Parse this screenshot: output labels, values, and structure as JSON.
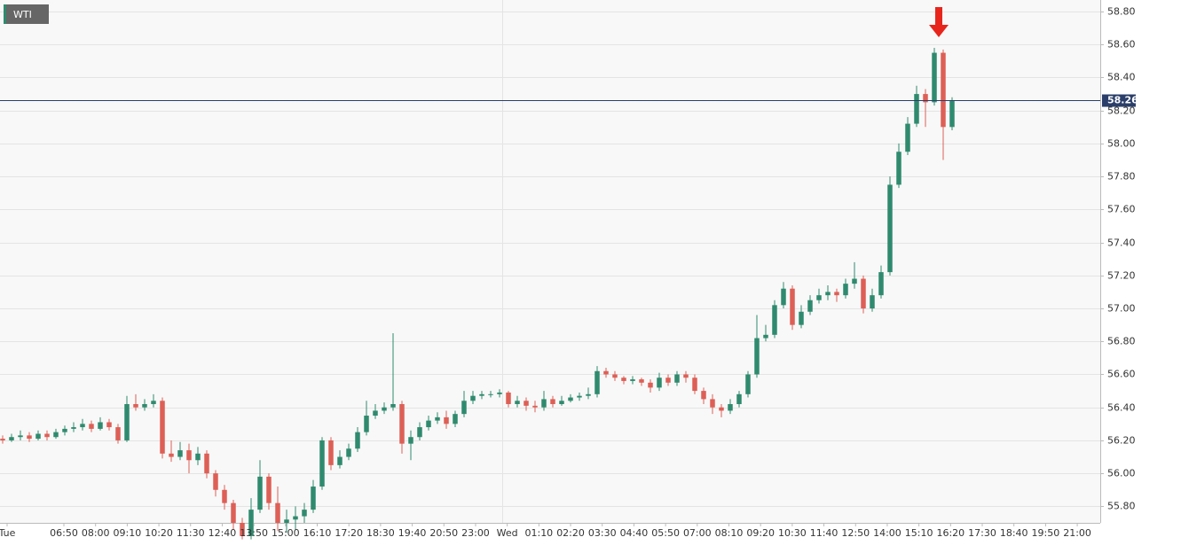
{
  "chart_data": {
    "type": "candlestick",
    "title": "WTI",
    "up_color": "#2f8a6e",
    "down_color": "#dd5f56",
    "open": [
      56.21,
      56.2,
      56.22,
      56.23,
      56.21,
      56.24,
      56.22,
      56.25,
      56.27,
      56.28,
      56.3,
      56.27,
      56.31,
      56.28,
      56.2,
      56.42,
      56.4,
      56.42,
      56.44,
      56.12,
      56.1,
      56.14,
      56.08,
      56.12,
      56.0,
      55.9,
      55.82,
      55.7,
      55.62,
      55.78,
      55.98,
      55.82,
      55.7,
      55.72,
      55.74,
      55.78,
      55.92,
      56.2,
      56.05,
      56.1,
      56.15,
      56.25,
      56.35,
      56.38,
      56.4,
      56.42,
      56.18,
      56.22,
      56.28,
      56.32,
      56.34,
      56.3,
      56.36,
      56.44,
      56.47,
      56.48,
      56.48,
      56.49,
      56.42,
      56.44,
      56.41,
      56.4,
      56.45,
      56.42,
      56.44,
      56.46,
      56.47,
      56.48,
      56.62,
      56.6,
      56.58,
      56.56,
      56.57,
      56.55,
      56.52,
      56.58,
      56.55,
      56.6,
      56.58,
      56.5,
      56.45,
      56.4,
      56.38,
      56.42,
      56.48,
      56.6,
      56.82,
      56.84,
      57.02,
      57.12,
      56.9,
      56.98,
      57.05,
      57.08,
      57.1,
      57.08,
      57.15,
      57.18,
      57.0,
      57.08,
      57.22,
      57.75,
      57.95,
      58.12,
      58.3,
      58.25,
      58.55,
      58.1
    ],
    "high": [
      56.23,
      56.24,
      56.26,
      56.25,
      56.26,
      56.26,
      56.27,
      56.29,
      56.31,
      56.33,
      56.32,
      56.34,
      56.33,
      56.3,
      56.47,
      56.48,
      56.45,
      56.48,
      56.46,
      56.2,
      56.19,
      56.18,
      56.16,
      56.14,
      56.02,
      55.93,
      55.84,
      55.73,
      55.85,
      56.08,
      56.0,
      55.92,
      55.78,
      55.8,
      55.82,
      55.96,
      56.22,
      56.22,
      56.14,
      56.18,
      56.28,
      56.44,
      56.42,
      56.43,
      56.85,
      56.44,
      56.26,
      56.31,
      56.35,
      56.37,
      56.38,
      56.38,
      56.5,
      56.5,
      56.5,
      56.5,
      56.51,
      56.5,
      56.47,
      56.46,
      56.44,
      56.5,
      56.47,
      56.47,
      56.48,
      56.49,
      56.52,
      56.65,
      56.64,
      56.62,
      56.59,
      56.59,
      56.58,
      56.57,
      56.61,
      56.6,
      56.62,
      56.62,
      56.6,
      56.52,
      56.48,
      56.42,
      56.45,
      56.5,
      56.62,
      56.96,
      56.9,
      57.05,
      57.16,
      57.14,
      57.02,
      57.08,
      57.12,
      57.14,
      57.12,
      57.18,
      57.28,
      57.2,
      57.12,
      57.26,
      57.8,
      58.0,
      58.16,
      58.35,
      58.33,
      58.58,
      58.57,
      58.28
    ],
    "low": [
      56.18,
      56.19,
      56.2,
      56.19,
      56.2,
      56.2,
      56.21,
      56.23,
      56.25,
      56.26,
      56.25,
      56.26,
      56.26,
      56.18,
      56.19,
      56.38,
      56.38,
      56.4,
      56.09,
      56.07,
      56.08,
      56.0,
      56.05,
      55.97,
      55.86,
      55.78,
      55.66,
      55.6,
      55.6,
      55.76,
      55.78,
      55.65,
      55.64,
      55.66,
      55.7,
      55.76,
      55.9,
      56.02,
      56.03,
      56.08,
      56.13,
      56.23,
      56.33,
      56.36,
      56.38,
      56.12,
      56.08,
      56.2,
      56.26,
      56.3,
      56.27,
      56.28,
      56.34,
      56.42,
      56.45,
      56.46,
      56.46,
      56.4,
      56.4,
      56.38,
      56.37,
      56.38,
      56.4,
      56.41,
      56.43,
      56.44,
      56.45,
      56.46,
      56.58,
      56.56,
      56.54,
      56.54,
      56.53,
      56.49,
      56.5,
      56.53,
      56.53,
      56.55,
      56.48,
      56.42,
      56.36,
      56.34,
      56.36,
      56.4,
      56.46,
      56.58,
      56.8,
      56.82,
      57.0,
      56.87,
      56.88,
      56.96,
      57.03,
      57.05,
      57.04,
      57.06,
      57.12,
      56.97,
      56.98,
      57.06,
      57.2,
      57.73,
      57.93,
      58.1,
      58.1,
      58.23,
      57.9,
      58.08
    ],
    "close": [
      56.2,
      56.22,
      56.23,
      56.21,
      56.24,
      56.22,
      56.25,
      56.27,
      56.28,
      56.3,
      56.27,
      56.31,
      56.28,
      56.2,
      56.42,
      56.4,
      56.42,
      56.44,
      56.12,
      56.1,
      56.14,
      56.08,
      56.12,
      56.0,
      55.9,
      55.82,
      55.7,
      55.62,
      55.78,
      55.98,
      55.82,
      55.7,
      55.72,
      55.74,
      55.78,
      55.92,
      56.2,
      56.05,
      56.1,
      56.15,
      56.25,
      56.35,
      56.38,
      56.4,
      56.42,
      56.18,
      56.22,
      56.28,
      56.32,
      56.34,
      56.3,
      56.36,
      56.44,
      56.47,
      56.48,
      56.48,
      56.49,
      56.42,
      56.44,
      56.41,
      56.4,
      56.45,
      56.42,
      56.44,
      56.46,
      56.47,
      56.48,
      56.62,
      56.6,
      56.58,
      56.56,
      56.57,
      56.55,
      56.52,
      56.58,
      56.55,
      56.6,
      56.58,
      56.5,
      56.45,
      56.4,
      56.38,
      56.42,
      56.48,
      56.6,
      56.82,
      56.84,
      57.02,
      57.12,
      56.9,
      56.98,
      57.05,
      57.08,
      57.1,
      57.08,
      57.15,
      57.18,
      57.0,
      57.08,
      57.22,
      57.75,
      57.95,
      58.12,
      58.3,
      58.25,
      58.55,
      58.1,
      58.26
    ],
    "last_price": {
      "value": 58.26,
      "label": "58.26"
    },
    "ylim": [
      55.7,
      58.87
    ],
    "yticks": [
      {
        "value": 55.8,
        "label": "55.80"
      },
      {
        "value": 56,
        "label": "56.00"
      },
      {
        "value": 56.2,
        "label": "56.20"
      },
      {
        "value": 56.4,
        "label": "56.40"
      },
      {
        "value": 56.6,
        "label": "56.60"
      },
      {
        "value": 56.8,
        "label": "56.80"
      },
      {
        "value": 57,
        "label": "57.00"
      },
      {
        "value": 57.2,
        "label": "57.20"
      },
      {
        "value": 57.4,
        "label": "57.40"
      },
      {
        "value": 57.6,
        "label": "57.60"
      },
      {
        "value": 57.8,
        "label": "57.80"
      },
      {
        "value": 58,
        "label": "58.00"
      },
      {
        "value": 58.2,
        "label": "58.20"
      },
      {
        "value": 58.4,
        "label": "58.40"
      },
      {
        "value": 58.6,
        "label": "58.60"
      },
      {
        "value": 58.8,
        "label": "58.80"
      }
    ],
    "x_tick_labels": [
      "Tue",
      "06:50",
      "08:00",
      "09:10",
      "10:20",
      "11:30",
      "12:40",
      "13:50",
      "15:00",
      "16:10",
      "17:20",
      "18:30",
      "19:40",
      "20:50",
      "23:00",
      "Wed",
      "01:10",
      "02:20",
      "03:30",
      "04:40",
      "05:50",
      "07:00",
      "08:10",
      "09:20",
      "10:30",
      "11:40",
      "12:50",
      "14:00",
      "15:10",
      "16:20",
      "17:30",
      "18:40",
      "19:50",
      "21:00"
    ],
    "grid": true
  }
}
